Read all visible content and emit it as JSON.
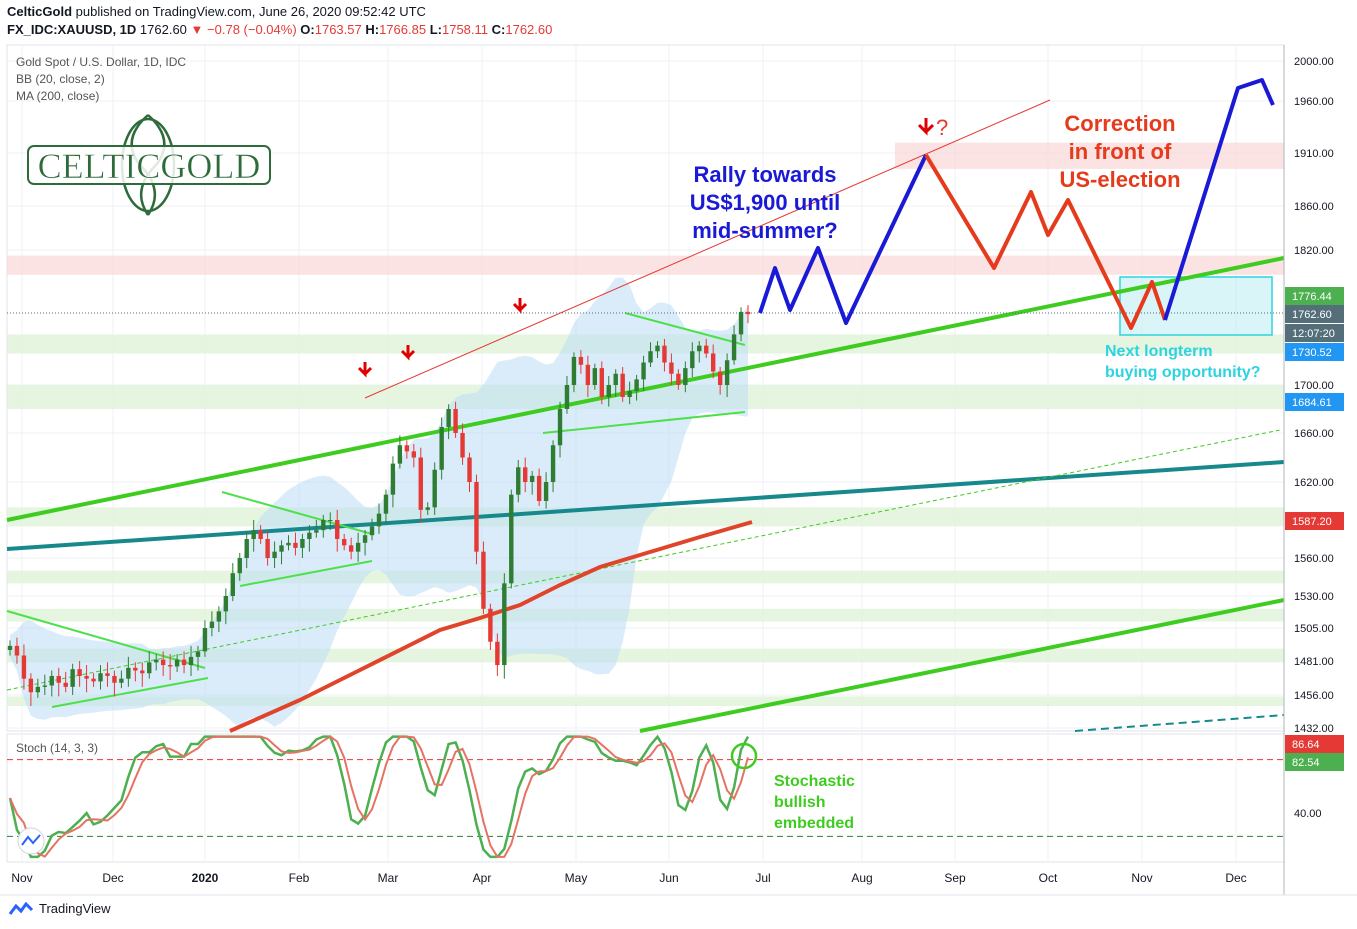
{
  "header": {
    "publisher": "CelticGold",
    "published_text": "published on TradingView.com, June 26, 2020 09:52:42 UTC",
    "symbol": "FX_IDC:XAUUSD, 1D",
    "last": "1762.60",
    "change": "▼ −0.78 (−0.04%)",
    "o_label": "O:",
    "o_value": "1763.57",
    "h_label": "H:",
    "h_value": "1766.85",
    "l_label": "L:",
    "l_value": "1758.11",
    "c_label": "C:",
    "c_value": "1762.60"
  },
  "legend": {
    "title": "Gold Spot / U.S. Dollar, 1D, IDC",
    "bb": "BB (20, close, 2)",
    "ma": "MA (200, close)"
  },
  "logo_text": "CELTICGOLD",
  "annotations": {
    "rally": [
      "Rally towards",
      "US$1,900 until",
      "mid-summer?"
    ],
    "correction": [
      "Correction",
      "in front of",
      "US-election"
    ],
    "next": [
      "Next longterm",
      "buying opportunity?"
    ],
    "stoch_note": [
      "Stochastic",
      "bullish",
      "embedded"
    ],
    "question": "?"
  },
  "colors": {
    "up": "#26a69a",
    "candle_up": "#2e7d32",
    "candle_down": "#e53935",
    "projection_blue": "#1a1ad6",
    "projection_red": "#e53b1c",
    "trend_green": "#3dcc1f",
    "trend_teal": "#17888c",
    "ma": "#e0452c",
    "price_tag": "#546e7a",
    "bb_fill": "#bcdcf5"
  },
  "chart_data": {
    "type": "candlestick",
    "title": "Gold Spot / U.S. Dollar, 1D, IDC",
    "y_ticks": [
      "2000.00",
      "1960.00",
      "1910.00",
      "1860.00",
      "1820.00",
      "1700.00",
      "1660.00",
      "1620.00",
      "1560.00",
      "1530.00",
      "1505.00",
      "1481.00",
      "1456.00",
      "1432.00"
    ],
    "x_ticks": [
      "Nov",
      "Dec",
      "2020",
      "Feb",
      "Mar",
      "Apr",
      "May",
      "Jun",
      "Jul",
      "Aug",
      "Sep",
      "Oct",
      "Nov",
      "Dec"
    ],
    "price_labels": [
      {
        "value": "1776.44",
        "kind": "green"
      },
      {
        "value": "1762.60",
        "kind": "last"
      },
      {
        "value": "12:07:20",
        "kind": "time"
      },
      {
        "value": "1730.52",
        "kind": "blue"
      },
      {
        "value": "1684.61",
        "kind": "blue"
      },
      {
        "value": "1587.20",
        "kind": "red"
      }
    ],
    "closes": [
      1492,
      1485,
      1468,
      1458,
      1462,
      1463,
      1470,
      1465,
      1462,
      1475,
      1470,
      1468,
      1466,
      1472,
      1470,
      1465,
      1468,
      1476,
      1474,
      1472,
      1480,
      1482,
      1478,
      1477,
      1482,
      1478,
      1484,
      1488,
      1505,
      1510,
      1518,
      1530,
      1548,
      1560,
      1575,
      1582,
      1575,
      1560,
      1565,
      1570,
      1572,
      1568,
      1575,
      1580,
      1582,
      1590,
      1590,
      1575,
      1570,
      1565,
      1572,
      1578,
      1585,
      1595,
      1610,
      1635,
      1650,
      1645,
      1640,
      1598,
      1600,
      1630,
      1665,
      1680,
      1660,
      1640,
      1620,
      1565,
      1520,
      1495,
      1478,
      1540,
      1610,
      1632,
      1620,
      1625,
      1605,
      1620,
      1650,
      1680,
      1700,
      1725,
      1718,
      1700,
      1715,
      1690,
      1700,
      1710,
      1690,
      1695,
      1705,
      1720,
      1730,
      1735,
      1720,
      1710,
      1700,
      1715,
      1730,
      1735,
      1728,
      1712,
      1700,
      1722,
      1745,
      1765,
      1763
    ],
    "y_range": [
      1432,
      2000
    ],
    "projection_blue_1": [
      [
        1,
        1760
      ],
      [
        2,
        1790
      ],
      [
        3,
        1765
      ],
      [
        4,
        1815
      ],
      [
        5,
        1745
      ],
      [
        6,
        1910
      ]
    ],
    "projection_red": [
      [
        6,
        1910
      ],
      [
        7,
        1805
      ],
      [
        8,
        1870
      ],
      [
        9,
        1830
      ],
      [
        10,
        1865
      ],
      [
        11,
        1745
      ],
      [
        12,
        1785
      ],
      [
        13,
        1760
      ]
    ],
    "projection_blue_2": [
      [
        13,
        1760
      ],
      [
        14,
        1990
      ],
      [
        15,
        1970
      ]
    ],
    "stochastic": {
      "name": "Stoch (14, 3, 3)",
      "ticks": [
        "40.00"
      ],
      "k_last": "86.64",
      "d_last": "82.54",
      "upper": 80,
      "lower": 20
    }
  }
}
